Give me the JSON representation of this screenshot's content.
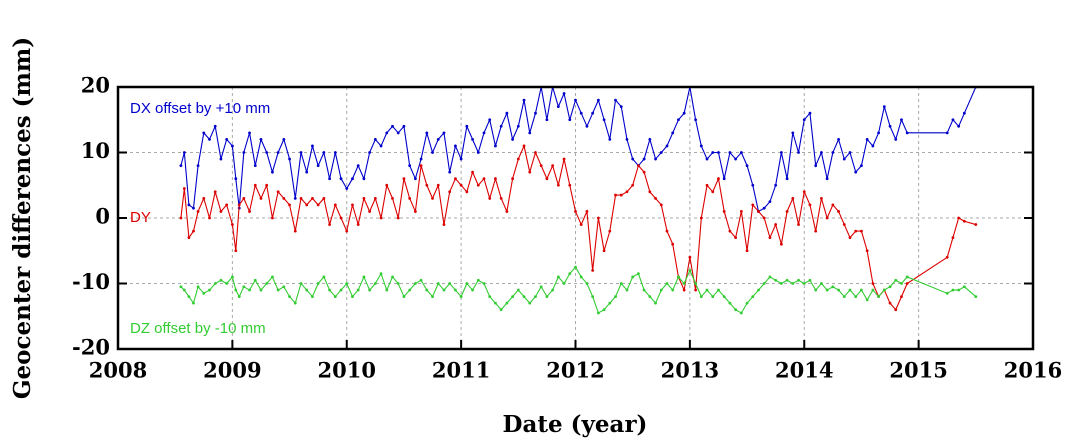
{
  "chart_data": {
    "type": "line",
    "xlabel": "Date (year)",
    "ylabel": "Geocenter differences (mm)",
    "xlim": [
      2008,
      2016
    ],
    "xticks": [
      2008,
      2009,
      2010,
      2011,
      2012,
      2013,
      2014,
      2015,
      2016
    ],
    "ylim": [
      -20,
      20
    ],
    "yticks": [
      -20,
      -10,
      0,
      10,
      20
    ],
    "grid": true,
    "annotations": [
      "DX offset by +10 mm",
      "DY",
      "DZ offset by -10 mm"
    ],
    "x": [
      2008.55,
      2008.58,
      2008.62,
      2008.66,
      2008.7,
      2008.75,
      2008.8,
      2008.85,
      2008.9,
      2008.95,
      2009.0,
      2009.03,
      2009.06,
      2009.1,
      2009.15,
      2009.2,
      2009.25,
      2009.3,
      2009.35,
      2009.4,
      2009.45,
      2009.5,
      2009.55,
      2009.6,
      2009.65,
      2009.7,
      2009.75,
      2009.8,
      2009.85,
      2009.9,
      2009.95,
      2010.0,
      2010.05,
      2010.1,
      2010.15,
      2010.2,
      2010.25,
      2010.3,
      2010.35,
      2010.4,
      2010.45,
      2010.5,
      2010.55,
      2010.6,
      2010.65,
      2010.7,
      2010.75,
      2010.8,
      2010.85,
      2010.9,
      2010.95,
      2011.0,
      2011.05,
      2011.1,
      2011.15,
      2011.2,
      2011.25,
      2011.3,
      2011.35,
      2011.4,
      2011.45,
      2011.5,
      2011.55,
      2011.6,
      2011.65,
      2011.7,
      2011.75,
      2011.8,
      2011.85,
      2011.9,
      2011.95,
      2012.0,
      2012.05,
      2012.1,
      2012.15,
      2012.2,
      2012.25,
      2012.3,
      2012.35,
      2012.4,
      2012.45,
      2012.5,
      2012.55,
      2012.6,
      2012.65,
      2012.7,
      2012.75,
      2012.8,
      2012.85,
      2012.9,
      2012.95,
      2013.0,
      2013.05,
      2013.1,
      2013.15,
      2013.2,
      2013.25,
      2013.3,
      2013.35,
      2013.4,
      2013.45,
      2013.5,
      2013.55,
      2013.6,
      2013.65,
      2013.7,
      2013.75,
      2013.8,
      2013.85,
      2013.9,
      2013.95,
      2014.0,
      2014.05,
      2014.1,
      2014.15,
      2014.2,
      2014.25,
      2014.3,
      2014.35,
      2014.4,
      2014.45,
      2014.5,
      2014.55,
      2014.6,
      2014.65,
      2014.7,
      2014.75,
      2014.8,
      2014.85,
      2014.9,
      2015.25,
      2015.3,
      2015.35,
      2015.4,
      2015.5
    ],
    "series": [
      {
        "color": "#0000cc",
        "values": [
          8,
          10,
          2,
          1.5,
          8,
          13,
          12,
          14,
          9,
          12,
          11,
          6,
          1.5,
          10,
          13,
          8,
          12,
          10,
          7,
          10,
          12,
          9,
          3,
          10,
          7,
          11,
          8,
          10,
          6,
          10,
          6,
          4.5,
          6,
          8,
          6,
          10,
          12,
          11,
          13,
          14,
          13,
          14,
          8,
          6,
          9,
          13,
          10,
          12,
          13,
          7,
          11,
          9,
          14,
          12,
          10,
          13,
          15,
          11,
          14,
          16,
          12,
          14,
          18,
          13,
          16,
          20,
          15,
          20,
          17,
          19,
          15,
          18,
          16,
          14,
          16,
          18,
          15,
          12,
          18,
          17,
          12,
          9,
          8,
          9,
          12,
          9,
          10,
          11,
          13,
          15,
          16,
          20,
          15,
          11,
          9,
          10,
          10,
          6,
          10,
          9,
          10,
          8,
          5,
          1,
          1.5,
          2.5,
          5,
          10,
          6,
          13,
          10,
          15,
          16,
          8,
          10,
          6,
          10,
          12,
          9,
          10,
          7,
          8,
          12,
          11,
          13,
          17,
          14,
          12,
          15,
          13,
          13,
          15,
          14,
          16,
          20
        ]
      },
      {
        "color": "#dd0000",
        "values": [
          0,
          4.5,
          -3,
          -2,
          1,
          3,
          0,
          4,
          1,
          2,
          -1,
          -5,
          2,
          3,
          1,
          5,
          3,
          5,
          0,
          4,
          3,
          2,
          -2,
          3,
          2,
          3,
          2,
          3,
          -1,
          2,
          0,
          -2,
          2,
          -1,
          3,
          1,
          3,
          0,
          5,
          3,
          0,
          6,
          3,
          1,
          8,
          5,
          3,
          5,
          -1,
          4,
          6,
          5,
          4,
          7,
          5,
          6,
          3,
          6,
          3,
          1,
          6,
          9,
          11,
          7,
          10,
          8,
          6,
          8,
          5,
          9,
          5,
          1,
          -1,
          1,
          -8,
          0,
          -5,
          -2,
          3.5,
          3.5,
          4,
          5,
          8,
          7,
          4,
          3,
          2,
          -2,
          -4,
          -9,
          -11,
          -6,
          -11,
          0,
          5,
          4,
          6,
          1,
          -2,
          -3,
          1,
          -5,
          2,
          1,
          0,
          -3,
          -1,
          -4,
          1,
          3,
          -1,
          4,
          2,
          -2,
          3,
          0,
          2,
          1,
          -1,
          -3,
          -2,
          -2,
          -5,
          -10,
          -12,
          -11,
          -13,
          -14,
          -12,
          -10,
          -6,
          -3,
          0,
          -0.5,
          -1
        ]
      },
      {
        "color": "#33cc33",
        "values": [
          -10.5,
          -11,
          -12,
          -13,
          -10.5,
          -11.5,
          -11,
          -10,
          -9.5,
          -10,
          -9,
          -11,
          -12,
          -10.5,
          -11,
          -9.5,
          -11,
          -10,
          -9,
          -11,
          -10.5,
          -12,
          -13,
          -10,
          -11,
          -12,
          -10,
          -9,
          -11,
          -12,
          -11,
          -10,
          -12,
          -11,
          -9,
          -11,
          -10,
          -8.5,
          -11,
          -9,
          -10,
          -12,
          -11,
          -10,
          -9.5,
          -11,
          -12,
          -10,
          -11,
          -10,
          -11,
          -12,
          -10,
          -11,
          -9.5,
          -10,
          -12,
          -13,
          -14,
          -13,
          -12,
          -11,
          -12,
          -13,
          -12,
          -10.5,
          -12,
          -11,
          -9,
          -10,
          -8.5,
          -7.5,
          -9,
          -10,
          -12,
          -14.5,
          -14,
          -13,
          -12,
          -10,
          -11,
          -9,
          -8.5,
          -11,
          -12,
          -13,
          -11,
          -10,
          -11,
          -9,
          -10,
          -8,
          -10,
          -12,
          -11,
          -12,
          -11,
          -12,
          -13,
          -14,
          -14.5,
          -13,
          -12,
          -11,
          -10,
          -9,
          -9.5,
          -10,
          -9.5,
          -10,
          -9.5,
          -10,
          -9.5,
          -11,
          -10,
          -11,
          -10.5,
          -11,
          -12,
          -11,
          -12,
          -11,
          -12.5,
          -11,
          -12,
          -11,
          -10.5,
          -9.5,
          -10,
          -9,
          -11.5,
          -11,
          -11,
          -10.5,
          -12
        ]
      }
    ]
  }
}
